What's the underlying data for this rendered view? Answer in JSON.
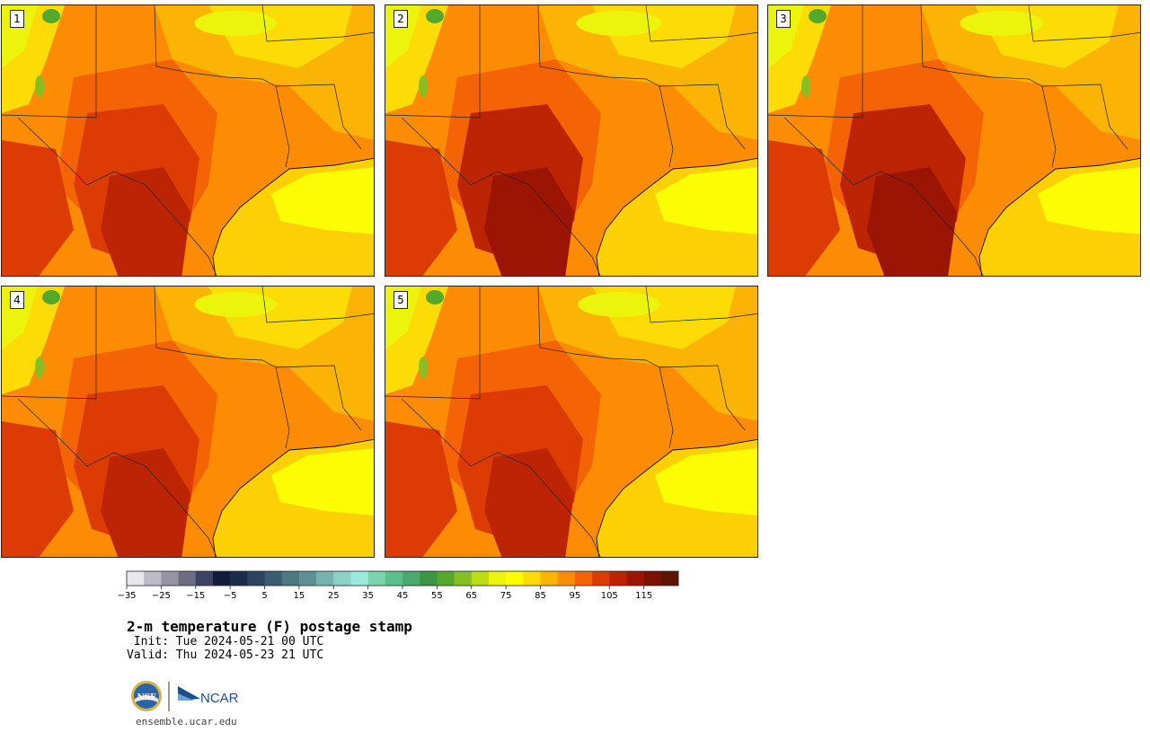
{
  "panels": [
    {
      "label": "1",
      "col": 0,
      "row": 0,
      "heat": 0.55
    },
    {
      "label": "2",
      "col": 1,
      "row": 0,
      "heat": 0.75
    },
    {
      "label": "3",
      "col": 2,
      "row": 0,
      "heat": 0.65
    },
    {
      "label": "4",
      "col": 0,
      "row": 1,
      "heat": 0.55
    },
    {
      "label": "5",
      "col": 1,
      "row": 1,
      "heat": 0.6
    }
  ],
  "colorbar": {
    "ticks": [
      "−35",
      "−25",
      "−15",
      "−5",
      "5",
      "15",
      "25",
      "35",
      "45",
      "55",
      "65",
      "75",
      "85",
      "95",
      "105",
      "115"
    ],
    "colors": [
      "#e8e8ec",
      "#bcbcc8",
      "#9494a4",
      "#6c6c84",
      "#3c4264",
      "#141c3c",
      "#1c2c4c",
      "#2c4460",
      "#3c5c70",
      "#4c7880",
      "#5c9094",
      "#74b4b0",
      "#8cd0c4",
      "#9ce8dc",
      "#7cd4ac",
      "#5cc08c",
      "#4ca86c",
      "#3c9444",
      "#54a82c",
      "#84c024",
      "#bcdc14",
      "#ecf40c",
      "#fcfc04",
      "#fcdc04",
      "#fcb404",
      "#fc8c04",
      "#f46404",
      "#dc3c04",
      "#bc2404",
      "#9c1404",
      "#7c1004",
      "#5c1404"
    ]
  },
  "title": "2-m temperature (F) postage stamp",
  "init": " Init: Tue 2024-05-21 00 UTC",
  "valid": "Valid: Thu 2024-05-23 21 UTC",
  "logos": {
    "nsf": "NSF",
    "ncar": "NCAR"
  },
  "website": "ensemble.ucar.edu"
}
